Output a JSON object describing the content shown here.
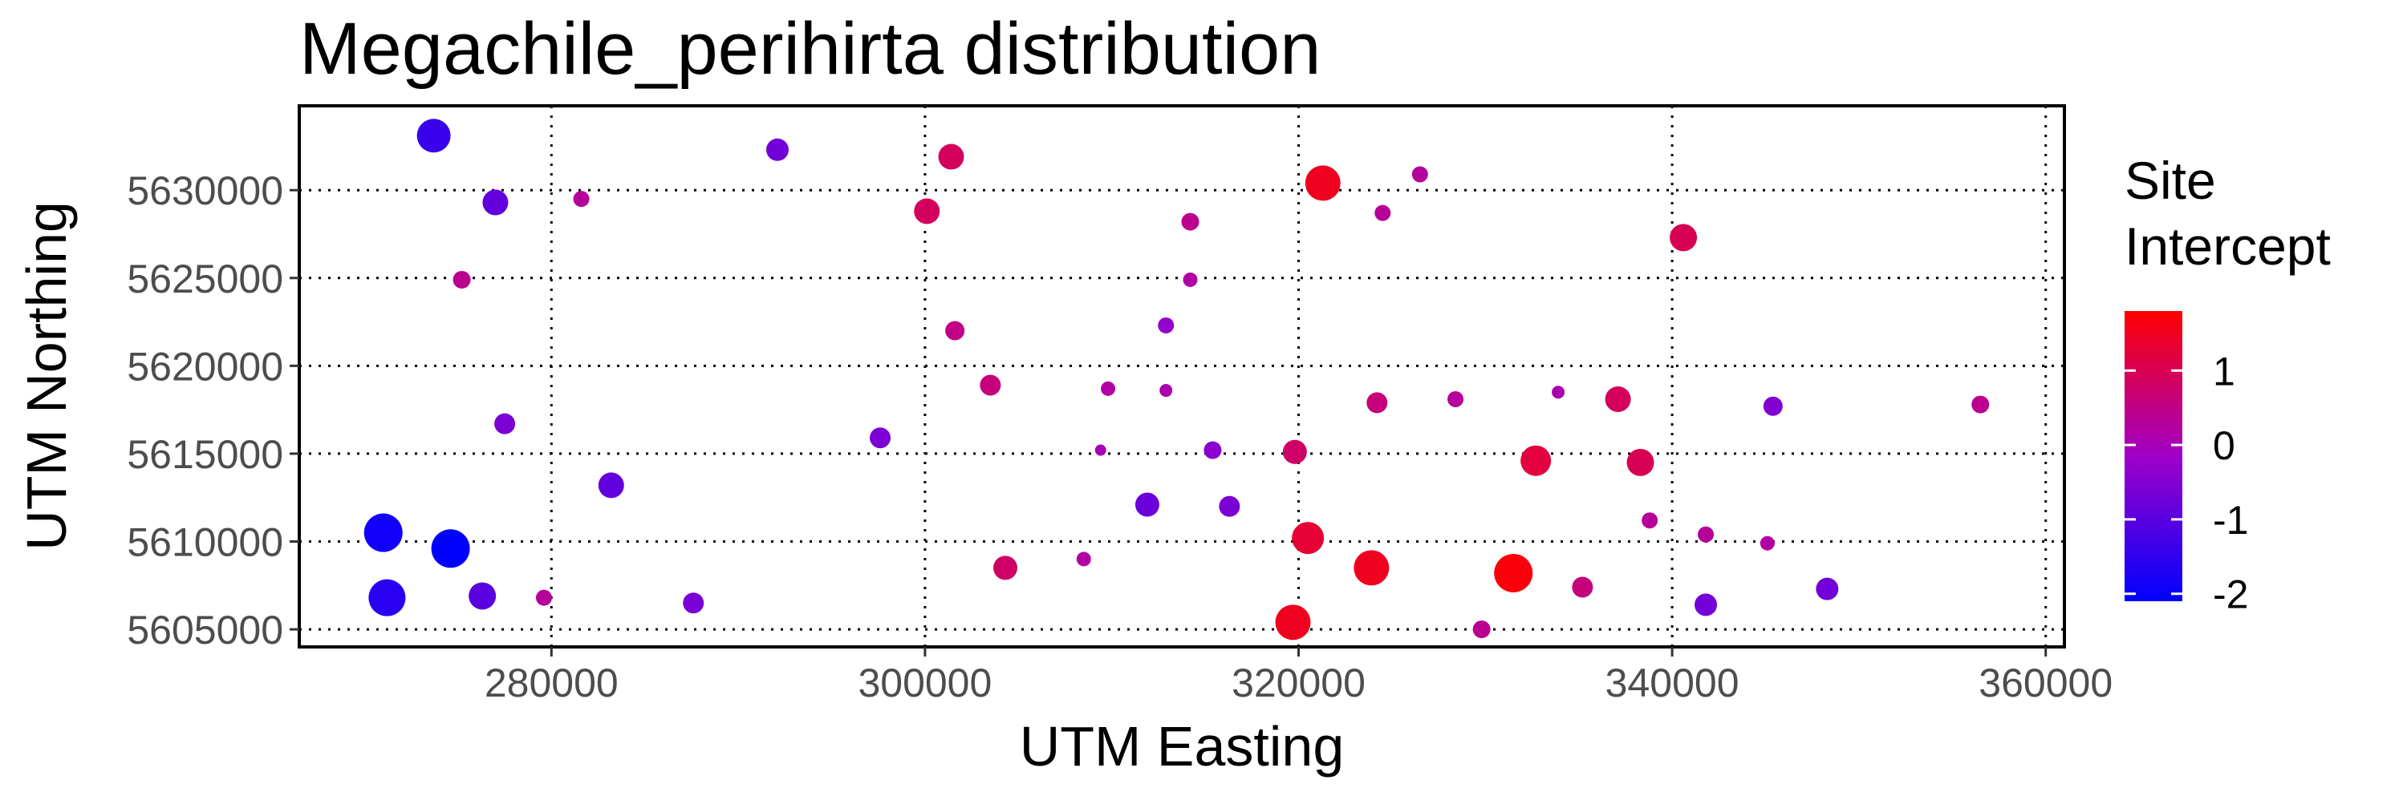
{
  "chart_data": {
    "type": "scatter",
    "title": "Megachile_perihirta distribution",
    "xlabel": "UTM Easting",
    "ylabel": "UTM Northing",
    "xlim": [
      266500,
      361000
    ],
    "ylim": [
      5604000,
      5634800
    ],
    "xticks": [
      280000,
      300000,
      320000,
      340000,
      360000
    ],
    "xtick_labels": [
      "280000",
      "300000",
      "320000",
      "340000",
      "360000"
    ],
    "yticks": [
      5605000,
      5610000,
      5615000,
      5620000,
      5625000,
      5630000
    ],
    "ytick_labels": [
      "5605000",
      "5610000",
      "5615000",
      "5620000",
      "5625000",
      "5630000"
    ],
    "grid": "major, dotted black",
    "legend": {
      "title_lines": [
        "Site",
        "Intercept"
      ],
      "placement": "right",
      "min": -2.1,
      "max": 1.8,
      "ticks": [
        1,
        0,
        -1,
        -2
      ],
      "tick_labels": [
        "1",
        "0",
        "-1",
        "-2"
      ],
      "colors": {
        "low": "#0000ff",
        "mid": "#a000c8",
        "high": "#ff0000"
      }
    },
    "points": [
      {
        "x": 273700,
        "y": 5633100,
        "intercept": -1.4
      },
      {
        "x": 292100,
        "y": 5632300,
        "intercept": -0.7
      },
      {
        "x": 301400,
        "y": 5631900,
        "intercept": 0.9
      },
      {
        "x": 326500,
        "y": 5630900,
        "intercept": 0.3
      },
      {
        "x": 321300,
        "y": 5630400,
        "intercept": 1.5
      },
      {
        "x": 277000,
        "y": 5629300,
        "intercept": -0.9
      },
      {
        "x": 281600,
        "y": 5629500,
        "intercept": 0.3
      },
      {
        "x": 300100,
        "y": 5628800,
        "intercept": 0.9
      },
      {
        "x": 324500,
        "y": 5628700,
        "intercept": 0.3
      },
      {
        "x": 314200,
        "y": 5628200,
        "intercept": 0.4
      },
      {
        "x": 340600,
        "y": 5627300,
        "intercept": 1.0
      },
      {
        "x": 275200,
        "y": 5624900,
        "intercept": 0.4
      },
      {
        "x": 314200,
        "y": 5624900,
        "intercept": 0.2
      },
      {
        "x": 301600,
        "y": 5622000,
        "intercept": 0.5
      },
      {
        "x": 312900,
        "y": 5622300,
        "intercept": -0.3
      },
      {
        "x": 303500,
        "y": 5618900,
        "intercept": 0.6
      },
      {
        "x": 309800,
        "y": 5618700,
        "intercept": 0.2
      },
      {
        "x": 312900,
        "y": 5618600,
        "intercept": 0.1
      },
      {
        "x": 324200,
        "y": 5617900,
        "intercept": 0.6
      },
      {
        "x": 328400,
        "y": 5618100,
        "intercept": 0.3
      },
      {
        "x": 333900,
        "y": 5618500,
        "intercept": 0.1
      },
      {
        "x": 337100,
        "y": 5618100,
        "intercept": 0.9
      },
      {
        "x": 345400,
        "y": 5617700,
        "intercept": -0.5
      },
      {
        "x": 356500,
        "y": 5617800,
        "intercept": 0.4
      },
      {
        "x": 277500,
        "y": 5616700,
        "intercept": -0.6
      },
      {
        "x": 297600,
        "y": 5615900,
        "intercept": -0.6
      },
      {
        "x": 309400,
        "y": 5615200,
        "intercept": 0.0
      },
      {
        "x": 315400,
        "y": 5615200,
        "intercept": -0.4
      },
      {
        "x": 319800,
        "y": 5615100,
        "intercept": 0.8
      },
      {
        "x": 332700,
        "y": 5614600,
        "intercept": 1.2
      },
      {
        "x": 338300,
        "y": 5614500,
        "intercept": 1.0
      },
      {
        "x": 283200,
        "y": 5613200,
        "intercept": -0.9
      },
      {
        "x": 311900,
        "y": 5612100,
        "intercept": -0.8
      },
      {
        "x": 316300,
        "y": 5612000,
        "intercept": -0.6
      },
      {
        "x": 338800,
        "y": 5611200,
        "intercept": 0.3
      },
      {
        "x": 341800,
        "y": 5610400,
        "intercept": 0.3
      },
      {
        "x": 345100,
        "y": 5609900,
        "intercept": 0.2
      },
      {
        "x": 271000,
        "y": 5610500,
        "intercept": -1.9
      },
      {
        "x": 274600,
        "y": 5609600,
        "intercept": -2.1
      },
      {
        "x": 320500,
        "y": 5610200,
        "intercept": 1.3
      },
      {
        "x": 308500,
        "y": 5609000,
        "intercept": 0.2
      },
      {
        "x": 304300,
        "y": 5608500,
        "intercept": 0.8
      },
      {
        "x": 323900,
        "y": 5608500,
        "intercept": 1.5
      },
      {
        "x": 331500,
        "y": 5608200,
        "intercept": 1.7
      },
      {
        "x": 335200,
        "y": 5607400,
        "intercept": 0.6
      },
      {
        "x": 348300,
        "y": 5607300,
        "intercept": -0.7
      },
      {
        "x": 271200,
        "y": 5606800,
        "intercept": -1.6
      },
      {
        "x": 276300,
        "y": 5606900,
        "intercept": -1.0
      },
      {
        "x": 279600,
        "y": 5606800,
        "intercept": 0.3
      },
      {
        "x": 287600,
        "y": 5606500,
        "intercept": -0.6
      },
      {
        "x": 341800,
        "y": 5606400,
        "intercept": -0.7
      },
      {
        "x": 319700,
        "y": 5605400,
        "intercept": 1.5
      },
      {
        "x": 329800,
        "y": 5605000,
        "intercept": 0.4
      }
    ]
  }
}
